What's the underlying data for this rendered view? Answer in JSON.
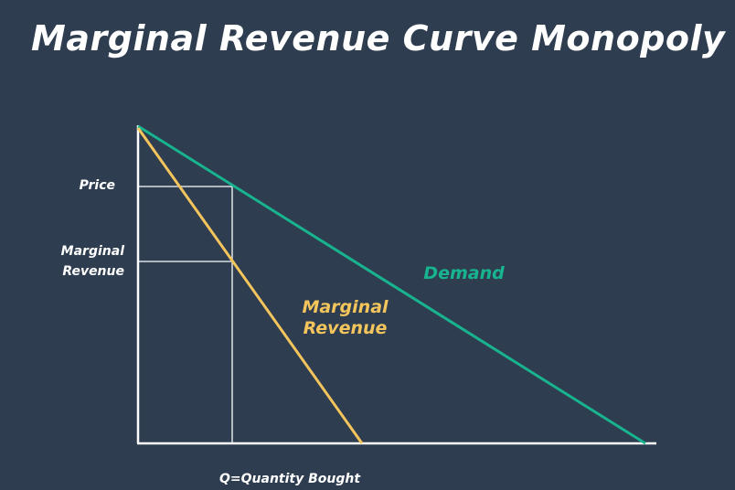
{
  "title": "Marginal Revenue Curve Monopoly",
  "labels": {
    "price": "Price",
    "marginal_revenue_axis": [
      "Marginal",
      "Revenue"
    ],
    "demand": "Demand",
    "marginal_revenue_curve": [
      "Marginal",
      "Revenue"
    ],
    "x_axis": "Q=Quantity Bought"
  },
  "colors": {
    "background": "#2e3d4f",
    "demand": "#17b48f",
    "marginal_revenue": "#f4c55c",
    "axes": "#ffffff"
  }
}
